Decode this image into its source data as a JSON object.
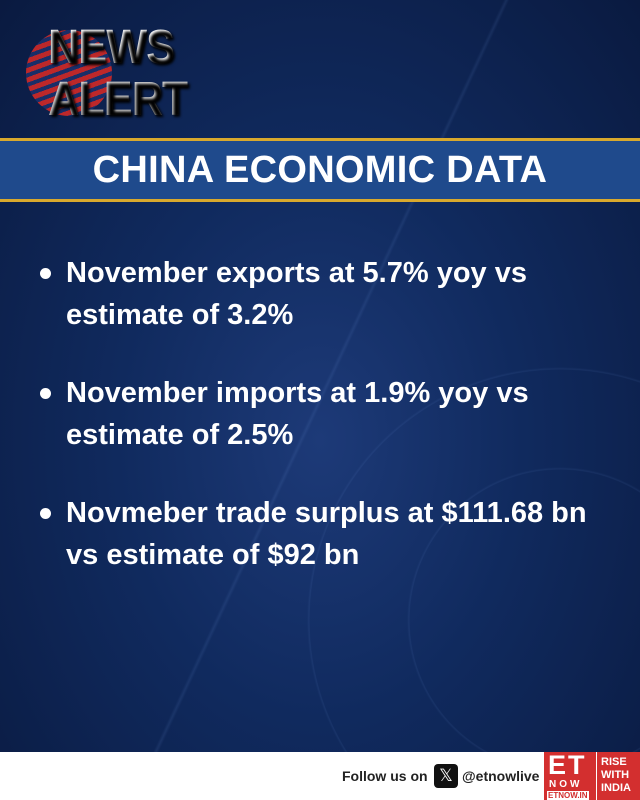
{
  "logo": {
    "text_line1": "NEWS",
    "text_line2": "ALERT"
  },
  "banner": {
    "title": "CHINA ECONOMIC DATA"
  },
  "bullets": [
    {
      "line1": "November exports at 5.7% yoy vs",
      "line2": "estimate of 3.2%"
    },
    {
      "line1": "November imports at 1.9% yoy vs",
      "line2": "estimate of 2.5%"
    },
    {
      "line1": "Novmeber trade surplus at $111.68 bn",
      "line2": "vs estimate of $92 bn"
    }
  ],
  "footer": {
    "follow_label": "Follow us on",
    "social_icon": "x-logo-icon",
    "handle": "@etnowlive",
    "brand": {
      "big": "ET",
      "now": "NOW",
      "url": "ETNOW.IN",
      "tagline1": "RISE",
      "tagline2": "WITH",
      "tagline3": "INDIA"
    }
  },
  "colors": {
    "background": "#102a5e",
    "banner": "#1f4a8c",
    "gold": "#d9a92d",
    "brand_red": "#d32f2f"
  }
}
